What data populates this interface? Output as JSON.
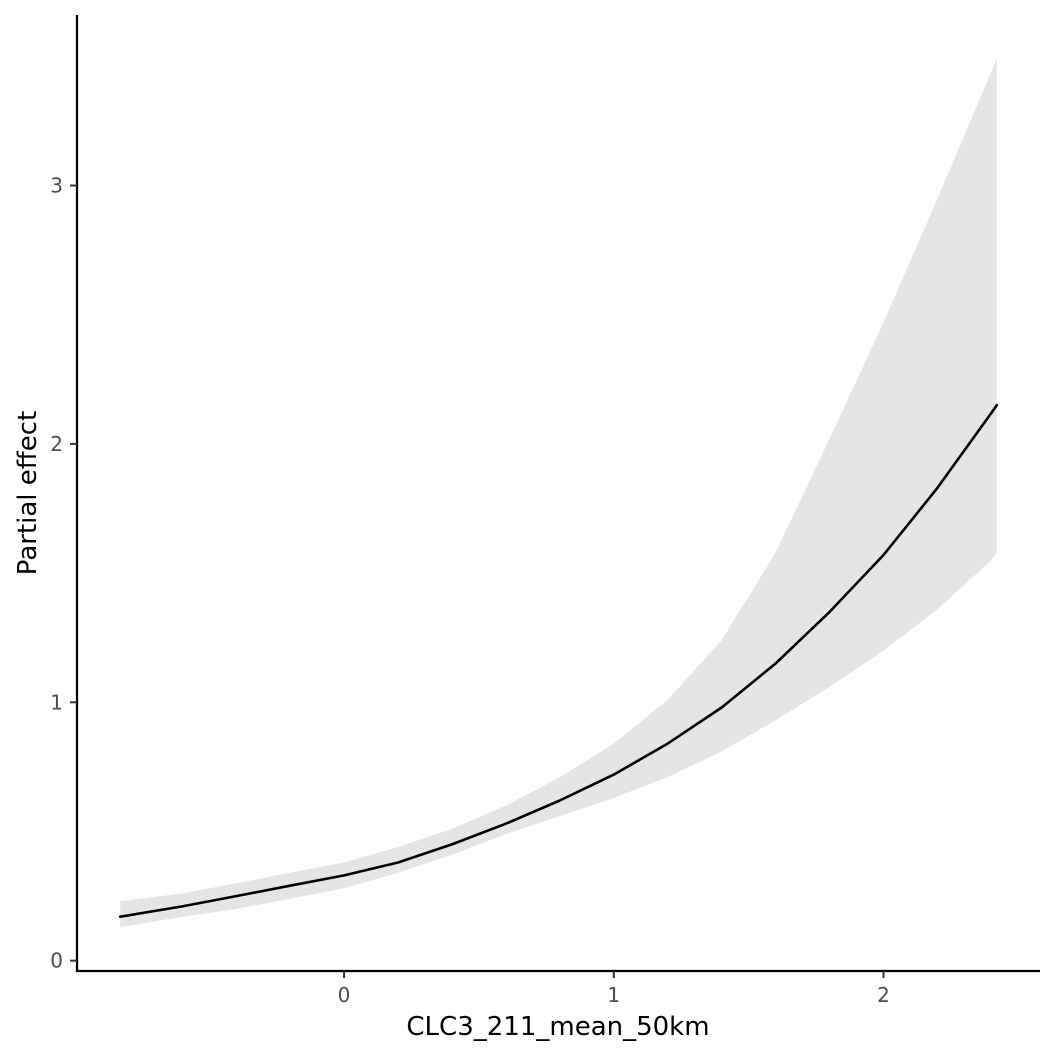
{
  "chart_data": {
    "type": "line",
    "title": "",
    "xlabel": "CLC3_211_mean_50km",
    "ylabel": "Partial effect",
    "xlim": [
      -0.99,
      2.58
    ],
    "ylim": [
      -0.04,
      3.66
    ],
    "x_ticks": [
      0,
      1,
      2
    ],
    "y_ticks": [
      0,
      1,
      2,
      3
    ],
    "x_tick_labels": [
      "0",
      "1",
      "2"
    ],
    "y_tick_labels": [
      "0",
      "1",
      "2",
      "3"
    ],
    "grid": false,
    "legend": "none",
    "colors": {
      "line": "#000000",
      "band": "#e5e5e5"
    },
    "series": [
      {
        "x": [
          -0.83,
          -0.6,
          -0.4,
          -0.2,
          0.0,
          0.2,
          0.4,
          0.6,
          0.8,
          1.0,
          1.2,
          1.4,
          1.6,
          1.8,
          2.0,
          2.2,
          2.4,
          2.42
        ],
        "y": [
          0.17,
          0.21,
          0.25,
          0.29,
          0.33,
          0.38,
          0.45,
          0.53,
          0.62,
          0.72,
          0.84,
          0.98,
          1.15,
          1.35,
          1.57,
          1.83,
          2.12,
          2.15
        ],
        "lower": [
          0.13,
          0.17,
          0.2,
          0.24,
          0.28,
          0.34,
          0.41,
          0.49,
          0.56,
          0.63,
          0.71,
          0.81,
          0.93,
          1.06,
          1.2,
          1.36,
          1.55,
          1.58
        ],
        "upper": [
          0.23,
          0.26,
          0.3,
          0.34,
          0.38,
          0.44,
          0.51,
          0.6,
          0.71,
          0.84,
          1.01,
          1.24,
          1.58,
          2.02,
          2.47,
          2.95,
          3.44,
          3.49
        ]
      }
    ]
  }
}
